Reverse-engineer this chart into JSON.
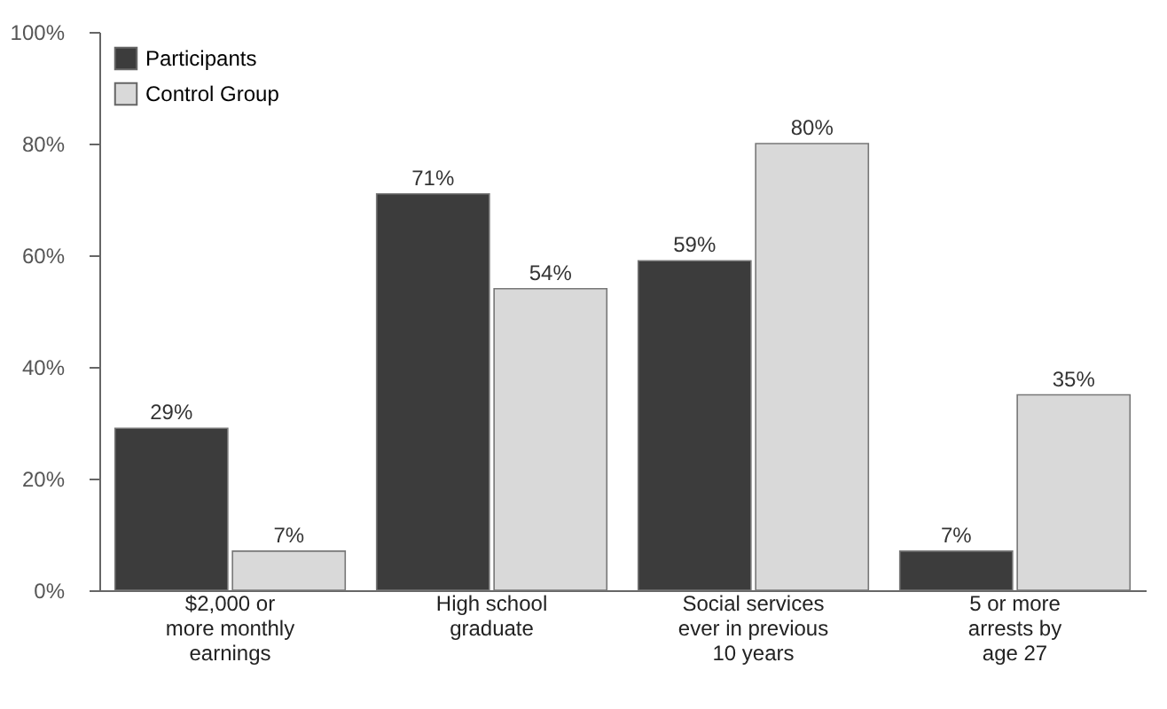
{
  "chart_data": {
    "type": "bar",
    "categories": [
      "$2,000 or\nmore monthly\nearnings",
      "High school\ngraduate",
      "Social services\never in previous\n10 years",
      "5 or more\narrests by\nage 27"
    ],
    "series": [
      {
        "name": "Participants",
        "color": "#3c3c3c",
        "values": [
          29,
          71,
          59,
          7
        ],
        "value_labels": [
          "29%",
          "71%",
          "59%",
          "7%"
        ]
      },
      {
        "name": "Control Group",
        "color": "#d9d9d9",
        "values": [
          7,
          54,
          80,
          35
        ],
        "value_labels": [
          "7%",
          "54%",
          "80%",
          "35%"
        ]
      }
    ],
    "ylim": [
      0,
      100
    ],
    "yticks": [
      {
        "value": 0,
        "label": "0%"
      },
      {
        "value": 20,
        "label": "20%"
      },
      {
        "value": 40,
        "label": "40%"
      },
      {
        "value": 60,
        "label": "60%"
      },
      {
        "value": 80,
        "label": "80%"
      },
      {
        "value": 100,
        "label": "100%"
      }
    ],
    "legend": "top left",
    "grid": false
  }
}
